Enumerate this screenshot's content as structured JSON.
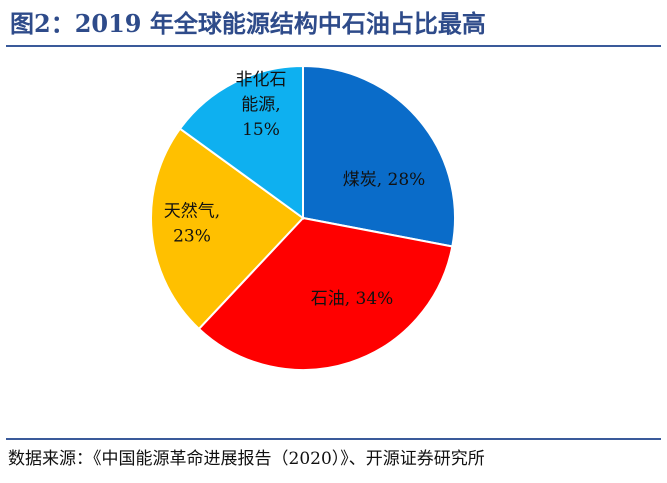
{
  "header": {
    "title": "图2：2019 年全球能源结构中石油占比最高"
  },
  "footer": {
    "source": "数据来源：《中国能源革命进展报告（2020）》、开源证券研究所"
  },
  "chart_data": {
    "type": "pie",
    "title": "",
    "slices": [
      {
        "name": "煤炭",
        "value": 28,
        "label_lines": [
          "煤炭, 28%"
        ],
        "color": "#0a6cc9"
      },
      {
        "name": "石油",
        "value": 34,
        "label_lines": [
          "石油, 34%"
        ],
        "color": "#ff0000"
      },
      {
        "name": "天然气",
        "value": 23,
        "label_lines": [
          "天然气,",
          "23%"
        ],
        "color": "#ffc000"
      },
      {
        "name": "非化石能源",
        "value": 15,
        "label_lines": [
          "非化石",
          "能源,",
          "15%"
        ],
        "color": "#0eb0f0"
      }
    ],
    "start": "12 o'clock",
    "direction": "clockwise",
    "border_color": "#ffffff",
    "legend": "none"
  }
}
